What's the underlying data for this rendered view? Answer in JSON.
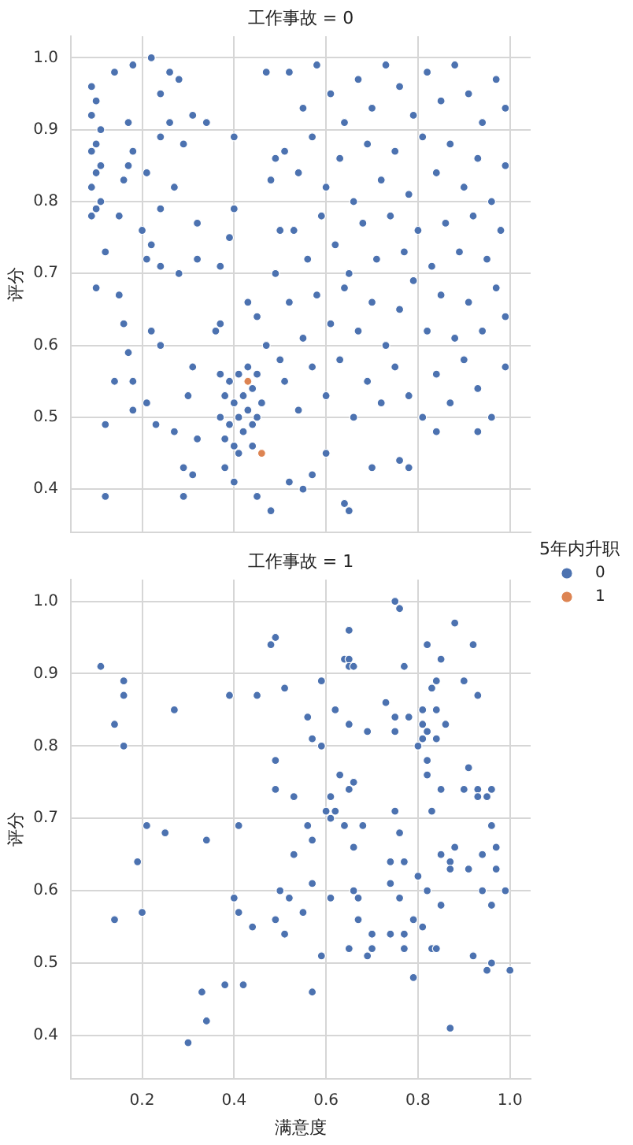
{
  "chart_data": [
    {
      "type": "scatter",
      "title": "工作事故 = 0",
      "ylabel": "评分",
      "legend_title": "5年内升职",
      "legend": "bottom right",
      "marker": "circle",
      "grid": true,
      "tick_labels": "y",
      "xlim": [
        0.045,
        1.045
      ],
      "ylim": [
        0.34,
        1.03
      ],
      "xticks": [
        0.2,
        0.4,
        0.6,
        0.8,
        1
      ],
      "yticks": [
        0.4,
        0.5,
        0.6,
        0.7,
        0.8,
        0.9,
        {
          "value": 1,
          "label": "1.0"
        }
      ],
      "series": [
        {
          "name": "0",
          "color": "#4c72b0",
          "x": [
            0.09,
            0.1,
            0.09,
            0.11,
            0.1,
            0.09,
            0.11,
            0.1,
            0.09,
            0.11,
            0.09,
            0.1,
            0.14,
            0.18,
            0.22,
            0.26,
            0.28,
            0.24,
            0.17,
            0.24,
            0.26,
            0.29,
            0.31,
            0.34,
            0.18,
            0.17,
            0.16,
            0.21,
            0.27,
            0.24,
            0.15,
            0.2,
            0.32,
            0.4,
            0.4,
            0.39,
            0.12,
            0.22,
            0.21,
            0.24,
            0.32,
            0.28,
            0.37,
            0.1,
            0.15,
            0.16,
            0.17,
            0.22,
            0.24,
            0.14,
            0.18,
            0.18,
            0.21,
            0.23,
            0.12,
            0.27,
            0.32,
            0.3,
            0.31,
            0.12,
            0.29,
            0.29,
            0.31,
            0.36,
            0.37,
            0.43,
            0.45,
            0.37,
            0.38,
            0.37,
            0.38,
            0.39,
            0.4,
            0.39,
            0.4,
            0.41,
            0.42,
            0.41,
            0.42,
            0.43,
            0.44,
            0.43,
            0.44,
            0.45,
            0.46,
            0.45,
            0.44,
            0.41,
            0.38,
            0.47,
            0.49,
            0.48,
            0.5,
            0.49,
            0.47,
            0.5,
            0.4,
            0.45,
            0.48,
            0.52,
            0.55,
            0.57,
            0.6,
            0.64,
            0.65,
            0.7,
            0.76,
            0.78,
            0.84,
            0.93,
            0.52,
            0.55,
            0.58,
            0.61,
            0.64,
            0.67,
            0.7,
            0.73,
            0.76,
            0.79,
            0.82,
            0.85,
            0.88,
            0.91,
            0.94,
            0.97,
            0.99,
            0.51,
            0.54,
            0.57,
            0.6,
            0.63,
            0.66,
            0.69,
            0.72,
            0.75,
            0.78,
            0.81,
            0.84,
            0.87,
            0.9,
            0.93,
            0.96,
            0.99,
            0.53,
            0.56,
            0.59,
            0.62,
            0.65,
            0.68,
            0.71,
            0.74,
            0.77,
            0.8,
            0.83,
            0.86,
            0.89,
            0.92,
            0.95,
            0.98,
            0.52,
            0.55,
            0.58,
            0.61,
            0.64,
            0.67,
            0.7,
            0.73,
            0.76,
            0.79,
            0.82,
            0.85,
            0.88,
            0.91,
            0.94,
            0.97,
            0.99,
            0.51,
            0.54,
            0.57,
            0.6,
            0.63,
            0.66,
            0.69,
            0.72,
            0.75,
            0.78,
            0.81,
            0.84,
            0.87,
            0.9,
            0.93,
            0.96,
            0.99
          ],
          "values": [
            0.96,
            0.94,
            0.92,
            0.9,
            0.88,
            0.87,
            0.85,
            0.84,
            0.82,
            0.8,
            0.78,
            0.79,
            0.98,
            0.99,
            1,
            0.98,
            0.97,
            0.95,
            0.91,
            0.89,
            0.91,
            0.88,
            0.92,
            0.91,
            0.87,
            0.85,
            0.83,
            0.84,
            0.82,
            0.79,
            0.78,
            0.76,
            0.77,
            0.89,
            0.79,
            0.75,
            0.73,
            0.74,
            0.72,
            0.71,
            0.72,
            0.7,
            0.71,
            0.68,
            0.67,
            0.63,
            0.59,
            0.62,
            0.6,
            0.55,
            0.55,
            0.51,
            0.52,
            0.49,
            0.49,
            0.48,
            0.47,
            0.53,
            0.57,
            0.39,
            0.39,
            0.43,
            0.42,
            0.62,
            0.63,
            0.66,
            0.64,
            0.56,
            0.53,
            0.5,
            0.47,
            0.55,
            0.52,
            0.49,
            0.46,
            0.56,
            0.53,
            0.5,
            0.48,
            0.57,
            0.54,
            0.51,
            0.49,
            0.56,
            0.52,
            0.5,
            0.46,
            0.45,
            0.43,
            0.98,
            0.86,
            0.83,
            0.76,
            0.7,
            0.6,
            0.58,
            0.41,
            0.39,
            0.37,
            0.41,
            0.4,
            0.42,
            0.45,
            0.38,
            0.37,
            0.43,
            0.44,
            0.43,
            0.48,
            0.48,
            0.98,
            0.93,
            0.99,
            0.95,
            0.91,
            0.97,
            0.93,
            0.99,
            0.96,
            0.92,
            0.98,
            0.94,
            0.99,
            0.95,
            0.91,
            0.97,
            0.93,
            0.87,
            0.84,
            0.89,
            0.82,
            0.86,
            0.8,
            0.88,
            0.83,
            0.87,
            0.81,
            0.89,
            0.84,
            0.88,
            0.82,
            0.86,
            0.8,
            0.85,
            0.76,
            0.72,
            0.78,
            0.74,
            0.7,
            0.77,
            0.72,
            0.78,
            0.73,
            0.76,
            0.71,
            0.77,
            0.73,
            0.78,
            0.72,
            0.76,
            0.66,
            0.61,
            0.67,
            0.63,
            0.68,
            0.62,
            0.66,
            0.6,
            0.65,
            0.69,
            0.62,
            0.67,
            0.61,
            0.66,
            0.62,
            0.68,
            0.64,
            0.55,
            0.51,
            0.57,
            0.53,
            0.58,
            0.5,
            0.55,
            0.52,
            0.57,
            0.53,
            0.5,
            0.56,
            0.52,
            0.58,
            0.54,
            0.5,
            0.57
          ]
        },
        {
          "name": "1",
          "color": "#dd8452",
          "x": [
            0.43,
            0.46
          ],
          "values": [
            0.55,
            0.45
          ]
        }
      ]
    },
    {
      "type": "scatter",
      "title": "工作事故 = 1",
      "xlabel": "满意度",
      "ylabel": "评分",
      "marker": "circle",
      "grid": true,
      "xlim": [
        0.045,
        1.045
      ],
      "ylim": [
        0.34,
        1.03
      ],
      "xticks": [
        0.2,
        0.4,
        0.6,
        0.8,
        {
          "value": 1,
          "label": "1.0"
        }
      ],
      "yticks": [
        0.4,
        0.5,
        0.6,
        0.7,
        0.8,
        0.9,
        {
          "value": 1,
          "label": "1.0"
        }
      ],
      "series": [
        {
          "color": "#4c72b0",
          "x": [
            0.11,
            0.16,
            0.16,
            0.14,
            0.16,
            0.27,
            0.21,
            0.25,
            0.19,
            0.14,
            0.2,
            0.34,
            0.39,
            0.45,
            0.48,
            0.49,
            0.51,
            0.49,
            0.49,
            0.53,
            0.41,
            0.53,
            0.5,
            0.52,
            0.4,
            0.41,
            0.44,
            0.49,
            0.51,
            0.33,
            0.38,
            0.42,
            0.34,
            0.3,
            0.75,
            0.76,
            0.65,
            0.88,
            0.82,
            0.92,
            0.85,
            0.64,
            0.65,
            0.65,
            0.66,
            0.77,
            0.59,
            0.84,
            0.9,
            0.83,
            0.93,
            0.73,
            0.62,
            0.81,
            0.84,
            0.56,
            0.75,
            0.78,
            0.65,
            0.81,
            0.86,
            0.69,
            0.75,
            0.82,
            0.57,
            0.81,
            0.84,
            0.59,
            0.8,
            0.82,
            0.91,
            0.63,
            0.82,
            0.66,
            0.65,
            0.85,
            0.9,
            0.93,
            0.96,
            0.93,
            0.95,
            0.61,
            0.6,
            0.62,
            0.75,
            0.83,
            0.61,
            0.56,
            0.64,
            0.68,
            0.96,
            0.57,
            0.76,
            0.66,
            0.88,
            0.97,
            0.74,
            0.77,
            0.85,
            0.87,
            0.87,
            0.91,
            0.94,
            0.97,
            0.8,
            0.57,
            0.74,
            0.66,
            0.82,
            0.94,
            0.99,
            0.61,
            0.67,
            0.76,
            0.55,
            0.67,
            0.85,
            0.96,
            0.79,
            0.81,
            0.7,
            0.74,
            0.77,
            0.65,
            0.7,
            0.69,
            0.77,
            0.83,
            0.84,
            0.59,
            0.92,
            0.95,
            0.96,
            1,
            0.79,
            0.57,
            0.87
          ],
          "values": [
            0.91,
            0.89,
            0.87,
            0.83,
            0.8,
            0.85,
            0.69,
            0.68,
            0.64,
            0.56,
            0.57,
            0.67,
            0.87,
            0.87,
            0.94,
            0.95,
            0.88,
            0.78,
            0.74,
            0.73,
            0.69,
            0.65,
            0.6,
            0.59,
            0.59,
            0.57,
            0.55,
            0.56,
            0.54,
            0.46,
            0.47,
            0.47,
            0.42,
            0.39,
            1,
            0.99,
            0.96,
            0.97,
            0.94,
            0.94,
            0.92,
            0.92,
            0.92,
            0.91,
            0.91,
            0.91,
            0.89,
            0.89,
            0.89,
            0.88,
            0.87,
            0.86,
            0.85,
            0.85,
            0.85,
            0.84,
            0.84,
            0.84,
            0.83,
            0.83,
            0.83,
            0.82,
            0.82,
            0.82,
            0.81,
            0.81,
            0.81,
            0.8,
            0.8,
            0.78,
            0.77,
            0.76,
            0.76,
            0.75,
            0.74,
            0.74,
            0.74,
            0.74,
            0.74,
            0.73,
            0.73,
            0.73,
            0.71,
            0.71,
            0.71,
            0.71,
            0.7,
            0.69,
            0.69,
            0.69,
            0.69,
            0.67,
            0.68,
            0.66,
            0.66,
            0.66,
            0.64,
            0.64,
            0.65,
            0.64,
            0.63,
            0.63,
            0.65,
            0.63,
            0.62,
            0.61,
            0.61,
            0.6,
            0.6,
            0.6,
            0.6,
            0.59,
            0.59,
            0.59,
            0.57,
            0.56,
            0.58,
            0.58,
            0.56,
            0.55,
            0.54,
            0.54,
            0.54,
            0.52,
            0.52,
            0.51,
            0.52,
            0.52,
            0.52,
            0.51,
            0.51,
            0.49,
            0.5,
            0.49,
            0.48,
            0.46,
            0.41
          ]
        }
      ]
    }
  ]
}
